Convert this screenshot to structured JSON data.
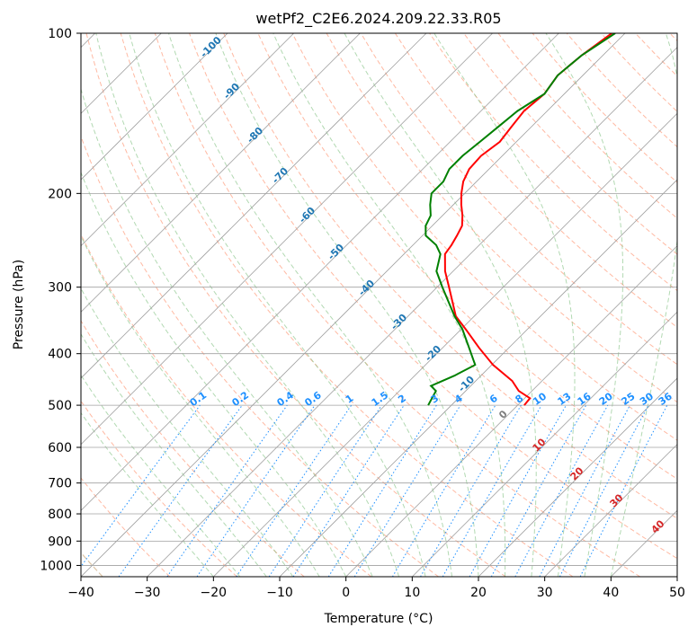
{
  "chart_data": {
    "type": "line",
    "title": "wetPf2_C2E6.2024.209.22.33.R05",
    "xlabel": "Temperature (°C)",
    "ylabel": "Pressure (hPa)",
    "xlim": [
      -40,
      50
    ],
    "ylim": [
      1050,
      100
    ],
    "y_scale": "log",
    "grid": true,
    "x_ticks": [
      -40,
      -30,
      -20,
      -10,
      0,
      10,
      20,
      30,
      40,
      50
    ],
    "y_ticks": [
      100,
      200,
      300,
      400,
      500,
      600,
      700,
      800,
      900,
      1000
    ],
    "series": [
      {
        "color": "#ff0000",
        "points": [
          [
            -42.0,
            100
          ],
          [
            -43.2,
            110
          ],
          [
            -43.8,
            120
          ],
          [
            -43.0,
            130
          ],
          [
            -43.5,
            140
          ],
          [
            -43.0,
            150
          ],
          [
            -42.5,
            160
          ],
          [
            -43.2,
            170
          ],
          [
            -43.0,
            180
          ],
          [
            -42.0,
            190
          ],
          [
            -40.5,
            200
          ],
          [
            -38.8,
            210
          ],
          [
            -37.0,
            220
          ],
          [
            -35.5,
            230
          ],
          [
            -34.8,
            240
          ],
          [
            -34.2,
            250
          ],
          [
            -33.8,
            260
          ],
          [
            -31.2,
            280
          ],
          [
            -28.2,
            300
          ],
          [
            -22.8,
            340
          ],
          [
            -19.3,
            360
          ],
          [
            -14.5,
            390
          ],
          [
            -9.8,
            420
          ],
          [
            -4.5,
            450
          ],
          [
            -2.0,
            470
          ],
          [
            0.8,
            485
          ],
          [
            1.0,
            500
          ]
        ]
      },
      {
        "color": "#008000",
        "points": [
          [
            -41.5,
            100
          ],
          [
            -43.2,
            110
          ],
          [
            -43.8,
            120
          ],
          [
            -43.0,
            130
          ],
          [
            -44.5,
            140
          ],
          [
            -45.0,
            150
          ],
          [
            -45.5,
            160
          ],
          [
            -46.0,
            170
          ],
          [
            -46.0,
            180
          ],
          [
            -45.0,
            190
          ],
          [
            -45.0,
            200
          ],
          [
            -43.5,
            210
          ],
          [
            -41.8,
            220
          ],
          [
            -41.0,
            230
          ],
          [
            -39.5,
            240
          ],
          [
            -36.5,
            250
          ],
          [
            -34.5,
            260
          ],
          [
            -32.5,
            280
          ],
          [
            -29.2,
            300
          ],
          [
            -23.0,
            340
          ],
          [
            -19.8,
            360
          ],
          [
            -16.0,
            390
          ],
          [
            -12.5,
            420
          ],
          [
            -14.0,
            440
          ],
          [
            -16.0,
            460
          ],
          [
            -14.5,
            470
          ],
          [
            -14.0,
            485
          ],
          [
            -13.5,
            500
          ]
        ]
      }
    ],
    "mixing_ratio_labels": [
      "0.1",
      "0.2",
      "0.4",
      "0.6",
      "1",
      "1.5",
      "2",
      "3",
      "4",
      "6",
      "8",
      "10",
      "13",
      "16",
      "20",
      "25",
      "30",
      "36"
    ],
    "isotherm_labels": [
      "-100",
      "-90",
      "-80",
      "-70",
      "-60",
      "-50",
      "-40",
      "-30",
      "-20",
      "-10",
      "0",
      "10",
      "20",
      "30",
      "40"
    ],
    "colors": {
      "temperature": "#ff0000",
      "dewpoint": "#008000",
      "isotherm_label": "#1f77b4",
      "isotherm_label_warm": "#d62728",
      "isotherm_label_zero": "#7f7f7f",
      "mixing_ratio": "#1e90ff",
      "dry_adiabat": "#ff9b7a",
      "moist_adiabat": "#7fbf7f",
      "skewed_isotherm": "#a0a0a0",
      "isobar": "#a0a0a0",
      "curved_adiabat": "#d2b48c"
    }
  }
}
